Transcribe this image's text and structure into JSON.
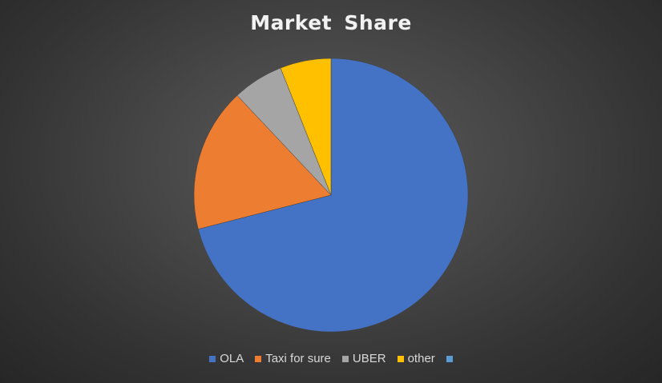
{
  "chart_data": {
    "type": "pie",
    "title": "Market Share",
    "categories": [
      "OLA",
      "Taxi for sure",
      "UBER",
      "other",
      ""
    ],
    "values": [
      71,
      17,
      6,
      6,
      0
    ],
    "colors": [
      "#4472c4",
      "#ed7d31",
      "#a5a5a5",
      "#ffc000",
      "#5b9bd5"
    ],
    "legend_position": "bottom"
  }
}
